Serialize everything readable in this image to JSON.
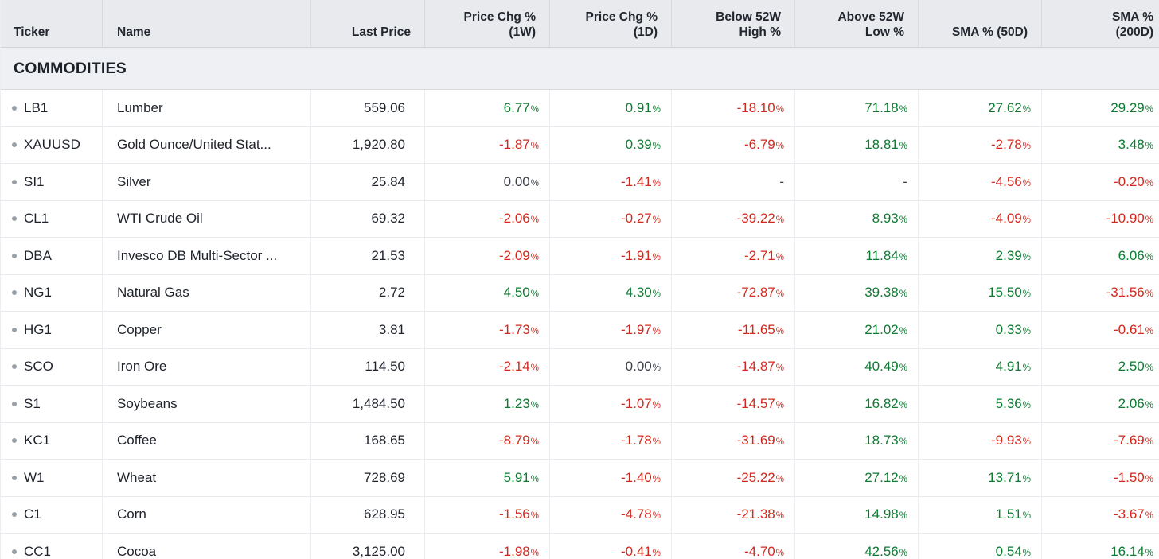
{
  "percent_suffix": "%",
  "section": {
    "label": "COMMODITIES"
  },
  "colors": {
    "positive": "#0e7b32",
    "negative": "#d2291f",
    "neutral": "#3a3f48",
    "header_bg": "#e9eaed",
    "section_bg": "#eef0f3"
  },
  "columns": [
    {
      "key": "ticker",
      "label_lines": [
        "Ticker"
      ],
      "align": "left"
    },
    {
      "key": "name",
      "label_lines": [
        "Name"
      ],
      "align": "left"
    },
    {
      "key": "last_price",
      "label_lines": [
        "Last Price"
      ],
      "align": "right"
    },
    {
      "key": "chg_1w",
      "label_lines": [
        "Price Chg %",
        "(1W)"
      ],
      "align": "right"
    },
    {
      "key": "chg_1d",
      "label_lines": [
        "Price Chg %",
        "(1D)"
      ],
      "align": "right"
    },
    {
      "key": "below_52w_high",
      "label_lines": [
        "Below 52W",
        "High %"
      ],
      "align": "right"
    },
    {
      "key": "above_52w_low",
      "label_lines": [
        "Above 52W",
        "Low %"
      ],
      "align": "right"
    },
    {
      "key": "sma_50d",
      "label_lines": [
        "SMA % (50D)"
      ],
      "align": "right"
    },
    {
      "key": "sma_200d",
      "label_lines": [
        "SMA %",
        "(200D)"
      ],
      "align": "right"
    }
  ],
  "rows": [
    {
      "ticker": "LB1",
      "name": "Lumber",
      "last_price": "559.06",
      "chg_1w": "6.77",
      "chg_1d": "0.91",
      "below_52w_high": "-18.10",
      "above_52w_low": "71.18",
      "sma_50d": "27.62",
      "sma_200d": "29.29"
    },
    {
      "ticker": "XAUUSD",
      "name": "Gold Ounce/United Stat...",
      "last_price": "1,920.80",
      "chg_1w": "-1.87",
      "chg_1d": "0.39",
      "below_52w_high": "-6.79",
      "above_52w_low": "18.81",
      "sma_50d": "-2.78",
      "sma_200d": "3.48"
    },
    {
      "ticker": "SI1",
      "name": "Silver",
      "last_price": "25.84",
      "chg_1w": "0.00",
      "chg_1d": "-1.41",
      "below_52w_high": "-",
      "above_52w_low": "-",
      "sma_50d": "-4.56",
      "sma_200d": "-0.20"
    },
    {
      "ticker": "CL1",
      "name": "WTI Crude Oil",
      "last_price": "69.32",
      "chg_1w": "-2.06",
      "chg_1d": "-0.27",
      "below_52w_high": "-39.22",
      "above_52w_low": "8.93",
      "sma_50d": "-4.09",
      "sma_200d": "-10.90"
    },
    {
      "ticker": "DBA",
      "name": "Invesco DB Multi-Sector ...",
      "last_price": "21.53",
      "chg_1w": "-2.09",
      "chg_1d": "-1.91",
      "below_52w_high": "-2.71",
      "above_52w_low": "11.84",
      "sma_50d": "2.39",
      "sma_200d": "6.06"
    },
    {
      "ticker": "NG1",
      "name": "Natural Gas",
      "last_price": "2.72",
      "chg_1w": "4.50",
      "chg_1d": "4.30",
      "below_52w_high": "-72.87",
      "above_52w_low": "39.38",
      "sma_50d": "15.50",
      "sma_200d": "-31.56"
    },
    {
      "ticker": "HG1",
      "name": "Copper",
      "last_price": "3.81",
      "chg_1w": "-1.73",
      "chg_1d": "-1.97",
      "below_52w_high": "-11.65",
      "above_52w_low": "21.02",
      "sma_50d": "0.33",
      "sma_200d": "-0.61"
    },
    {
      "ticker": "SCO",
      "name": "Iron Ore",
      "last_price": "114.50",
      "chg_1w": "-2.14",
      "chg_1d": "0.00",
      "below_52w_high": "-14.87",
      "above_52w_low": "40.49",
      "sma_50d": "4.91",
      "sma_200d": "2.50"
    },
    {
      "ticker": "S1",
      "name": "Soybeans",
      "last_price": "1,484.50",
      "chg_1w": "1.23",
      "chg_1d": "-1.07",
      "below_52w_high": "-14.57",
      "above_52w_low": "16.82",
      "sma_50d": "5.36",
      "sma_200d": "2.06"
    },
    {
      "ticker": "KC1",
      "name": "Coffee",
      "last_price": "168.65",
      "chg_1w": "-8.79",
      "chg_1d": "-1.78",
      "below_52w_high": "-31.69",
      "above_52w_low": "18.73",
      "sma_50d": "-9.93",
      "sma_200d": "-7.69"
    },
    {
      "ticker": "W1",
      "name": "Wheat",
      "last_price": "728.69",
      "chg_1w": "5.91",
      "chg_1d": "-1.40",
      "below_52w_high": "-25.22",
      "above_52w_low": "27.12",
      "sma_50d": "13.71",
      "sma_200d": "-1.50"
    },
    {
      "ticker": "C1",
      "name": "Corn",
      "last_price": "628.95",
      "chg_1w": "-1.56",
      "chg_1d": "-4.78",
      "below_52w_high": "-21.38",
      "above_52w_low": "14.98",
      "sma_50d": "1.51",
      "sma_200d": "-3.67"
    },
    {
      "ticker": "CC1",
      "name": "Cocoa",
      "last_price": "3,125.00",
      "chg_1w": "-1.98",
      "chg_1d": "-0.41",
      "below_52w_high": "-4.70",
      "above_52w_low": "42.56",
      "sma_50d": "0.54",
      "sma_200d": "16.14"
    }
  ]
}
